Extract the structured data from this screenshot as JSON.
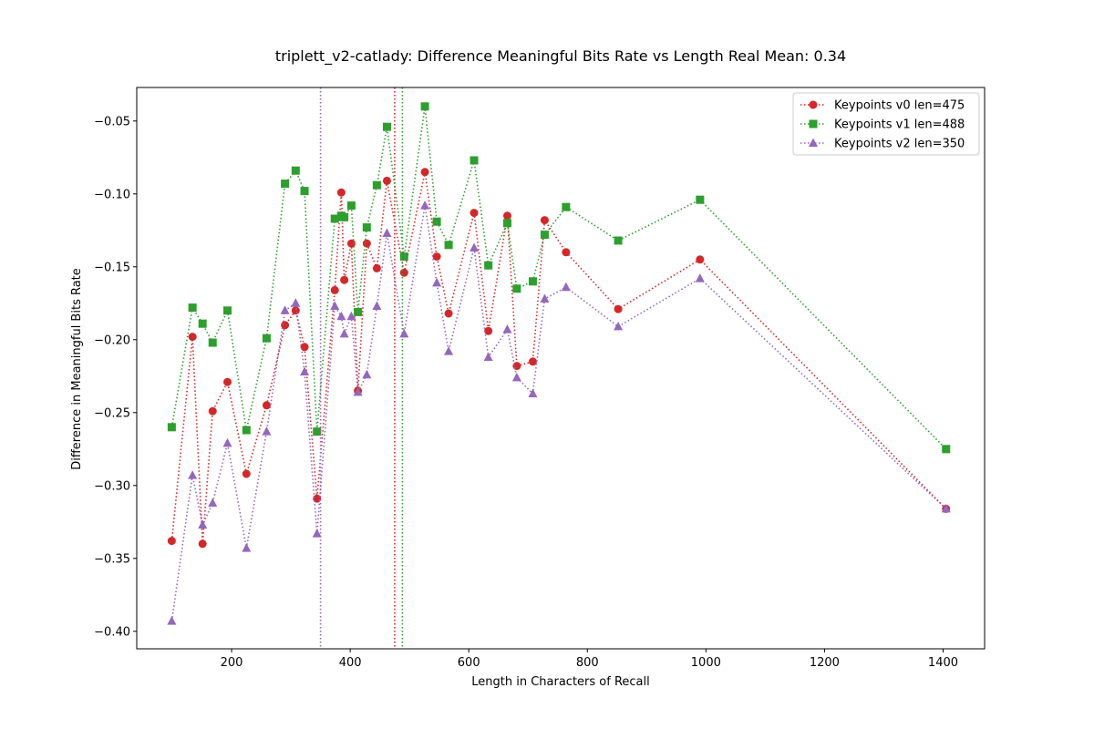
{
  "chart_data": {
    "type": "line",
    "title": "triplett_v2-catlady: Difference Meaningful Bits Rate vs Length Real Mean: 0.34",
    "xlabel": "Length in Characters of Recall",
    "ylabel": "Difference in Meaningful Bits Rate",
    "xlim": [
      40,
      1470
    ],
    "ylim": [
      -0.412,
      -0.027
    ],
    "xticks": [
      200,
      400,
      600,
      800,
      1000,
      1200,
      1400
    ],
    "xtick_labels": [
      "200",
      "400",
      "600",
      "800",
      "1000",
      "1200",
      "1400"
    ],
    "yticks": [
      -0.4,
      -0.35,
      -0.3,
      -0.25,
      -0.2,
      -0.15,
      -0.1,
      -0.05
    ],
    "ytick_labels": [
      "−0.40",
      "−0.35",
      "−0.30",
      "−0.25",
      "−0.20",
      "−0.15",
      "−0.10",
      "−0.05"
    ],
    "grid": false,
    "legend_position": "top-right",
    "series": [
      {
        "name": "Keypoints v0 len=475",
        "color": "#d62728",
        "marker": "circle",
        "vline": 475,
        "points": [
          [
            99,
            -0.338
          ],
          [
            134,
            -0.198
          ],
          [
            151,
            -0.34
          ],
          [
            168,
            -0.249
          ],
          [
            193,
            -0.229
          ],
          [
            225,
            -0.292
          ],
          [
            259,
            -0.245
          ],
          [
            290,
            -0.19
          ],
          [
            308,
            -0.18
          ],
          [
            323,
            -0.205
          ],
          [
            344,
            -0.309
          ],
          [
            374,
            -0.166
          ],
          [
            385,
            -0.099
          ],
          [
            390,
            -0.159
          ],
          [
            402,
            -0.134
          ],
          [
            413,
            -0.235
          ],
          [
            428,
            -0.134
          ],
          [
            445,
            -0.151
          ],
          [
            462,
            -0.091
          ],
          [
            491,
            -0.154
          ],
          [
            526,
            -0.085
          ],
          [
            546,
            -0.143
          ],
          [
            566,
            -0.182
          ],
          [
            609,
            -0.113
          ],
          [
            633,
            -0.194
          ],
          [
            665,
            -0.115
          ],
          [
            681,
            -0.218
          ],
          [
            708,
            -0.215
          ],
          [
            728,
            -0.118
          ],
          [
            764,
            -0.14
          ],
          [
            852,
            -0.179
          ],
          [
            990,
            -0.145
          ],
          [
            1405,
            -0.316
          ]
        ]
      },
      {
        "name": "Keypoints v1 len=488",
        "color": "#2ca02c",
        "marker": "square",
        "vline": 488,
        "points": [
          [
            99,
            -0.26
          ],
          [
            134,
            -0.178
          ],
          [
            151,
            -0.189
          ],
          [
            168,
            -0.202
          ],
          [
            193,
            -0.18
          ],
          [
            225,
            -0.262
          ],
          [
            259,
            -0.199
          ],
          [
            290,
            -0.093
          ],
          [
            308,
            -0.084
          ],
          [
            323,
            -0.098
          ],
          [
            344,
            -0.263
          ],
          [
            374,
            -0.117
          ],
          [
            385,
            -0.115
          ],
          [
            390,
            -0.116
          ],
          [
            402,
            -0.108
          ],
          [
            413,
            -0.181
          ],
          [
            428,
            -0.123
          ],
          [
            445,
            -0.094
          ],
          [
            462,
            -0.054
          ],
          [
            491,
            -0.143
          ],
          [
            526,
            -0.04
          ],
          [
            546,
            -0.119
          ],
          [
            566,
            -0.135
          ],
          [
            609,
            -0.077
          ],
          [
            633,
            -0.149
          ],
          [
            665,
            -0.12
          ],
          [
            681,
            -0.165
          ],
          [
            708,
            -0.16
          ],
          [
            728,
            -0.128
          ],
          [
            764,
            -0.109
          ],
          [
            852,
            -0.132
          ],
          [
            990,
            -0.104
          ],
          [
            1405,
            -0.275
          ]
        ]
      },
      {
        "name": "Keypoints v2 len=350",
        "color": "#9467bd",
        "marker": "triangle",
        "vline": 350,
        "points": [
          [
            99,
            -0.393
          ],
          [
            134,
            -0.293
          ],
          [
            151,
            -0.327
          ],
          [
            168,
            -0.312
          ],
          [
            193,
            -0.271
          ],
          [
            225,
            -0.343
          ],
          [
            259,
            -0.263
          ],
          [
            290,
            -0.18
          ],
          [
            308,
            -0.175
          ],
          [
            323,
            -0.222
          ],
          [
            344,
            -0.333
          ],
          [
            374,
            -0.177
          ],
          [
            385,
            -0.184
          ],
          [
            390,
            -0.196
          ],
          [
            402,
            -0.184
          ],
          [
            413,
            -0.236
          ],
          [
            428,
            -0.224
          ],
          [
            445,
            -0.177
          ],
          [
            462,
            -0.127
          ],
          [
            491,
            -0.196
          ],
          [
            526,
            -0.108
          ],
          [
            546,
            -0.161
          ],
          [
            566,
            -0.208
          ],
          [
            609,
            -0.137
          ],
          [
            633,
            -0.212
          ],
          [
            665,
            -0.193
          ],
          [
            681,
            -0.226
          ],
          [
            708,
            -0.237
          ],
          [
            728,
            -0.172
          ],
          [
            764,
            -0.164
          ],
          [
            852,
            -0.191
          ],
          [
            990,
            -0.158
          ],
          [
            1405,
            -0.316
          ]
        ]
      }
    ]
  }
}
